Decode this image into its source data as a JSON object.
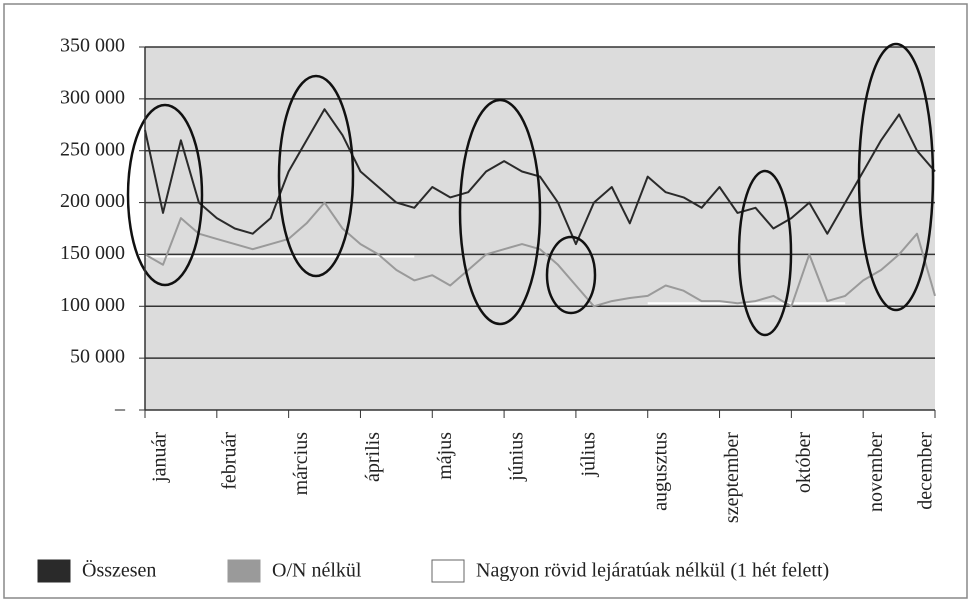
{
  "chart_data": {
    "type": "line",
    "categories": [
      "január",
      null,
      null,
      null,
      "február",
      null,
      null,
      null,
      "március",
      null,
      null,
      null,
      "április",
      null,
      null,
      null,
      "május",
      null,
      null,
      null,
      "június",
      null,
      null,
      null,
      "július",
      null,
      null,
      null,
      "augusztus",
      null,
      null,
      null,
      "szeptember",
      null,
      null,
      null,
      "október",
      null,
      null,
      null,
      "november",
      null,
      null,
      null,
      "december"
    ],
    "series": [
      {
        "name": "Összesen",
        "color": "#2a2a2a",
        "values": [
          270000,
          190000,
          260000,
          200000,
          185000,
          175000,
          170000,
          185000,
          230000,
          260000,
          290000,
          265000,
          230000,
          215000,
          200000,
          195000,
          215000,
          205000,
          210000,
          230000,
          240000,
          230000,
          225000,
          200000,
          160000,
          200000,
          215000,
          180000,
          225000,
          210000,
          205000,
          195000,
          215000,
          190000,
          195000,
          175000,
          185000,
          200000,
          170000,
          200000,
          230000,
          260000,
          285000,
          250000,
          230000
        ]
      },
      {
        "name": "O/N nélkül",
        "color": "#9a9a9a",
        "values": [
          150000,
          140000,
          185000,
          170000,
          165000,
          160000,
          155000,
          160000,
          165000,
          180000,
          200000,
          175000,
          160000,
          150000,
          135000,
          125000,
          130000,
          120000,
          135000,
          150000,
          155000,
          160000,
          155000,
          140000,
          120000,
          100000,
          105000,
          108000,
          110000,
          120000,
          115000,
          105000,
          105000,
          103000,
          105000,
          110000,
          100000,
          150000,
          105000,
          110000,
          125000,
          135000,
          150000,
          170000,
          110000
        ]
      },
      {
        "name": "Nagyon rövid lejáratúak nélkül (1 hét felett)",
        "color": "#ffffff",
        "values": [
          148000,
          148000,
          148000,
          148000,
          148000,
          148000,
          148000,
          148000,
          148000,
          148000,
          148000,
          148000,
          148000,
          148000,
          148000,
          148000,
          null,
          null,
          null,
          null,
          null,
          null,
          null,
          null,
          null,
          null,
          null,
          null,
          103000,
          103000,
          103000,
          103000,
          103000,
          103000,
          103000,
          103000,
          103000,
          103000,
          103000,
          103000,
          null,
          null,
          null,
          null,
          null
        ]
      }
    ],
    "ylim": [
      0,
      350000
    ],
    "yticks": [
      {
        "value": 0,
        "label": "–"
      },
      {
        "value": 50000,
        "label": "50 000"
      },
      {
        "value": 100000,
        "label": "100 000"
      },
      {
        "value": 150000,
        "label": "150 000"
      },
      {
        "value": 200000,
        "label": "200 000"
      },
      {
        "value": 250000,
        "label": "250 000"
      },
      {
        "value": 300000,
        "label": "300 000"
      },
      {
        "value": 350000,
        "label": "350 000"
      }
    ],
    "grid": true
  }
}
